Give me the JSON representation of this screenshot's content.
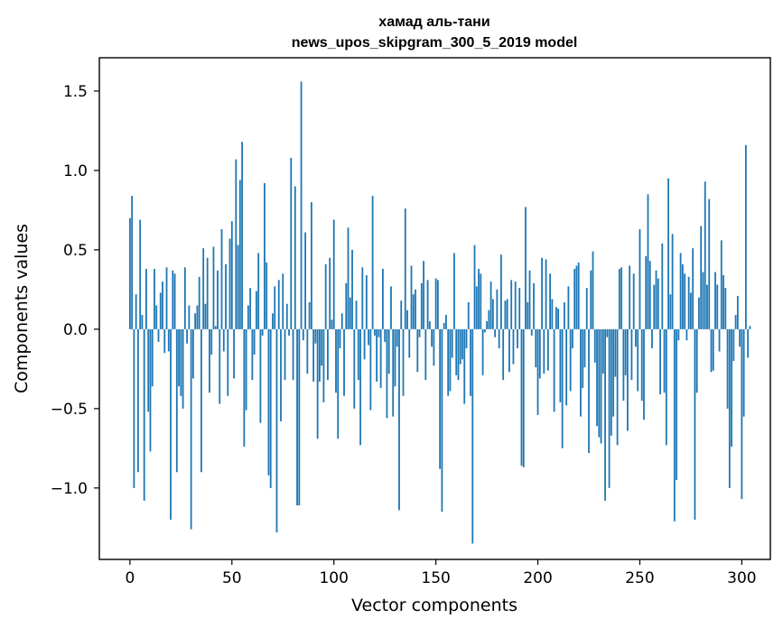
{
  "chart_data": {
    "type": "bar",
    "title_line1": "хамад аль-тани",
    "title_line2": "news_upos_skipgram_300_5_2019 model",
    "xlabel": "Vector components",
    "ylabel": "Components values",
    "xlim": [
      -15,
      314
    ],
    "ylim": [
      -1.45,
      1.71
    ],
    "xticks": [
      0,
      50,
      100,
      150,
      200,
      250,
      300
    ],
    "xtick_labels": [
      "0",
      "50",
      "100",
      "150",
      "200",
      "250",
      "300"
    ],
    "yticks": [
      -1.0,
      -0.5,
      0.0,
      0.5,
      1.0,
      1.5
    ],
    "ytick_labels": [
      "−1.0",
      "−0.5",
      "0.0",
      "0.5",
      "1.0",
      "1.5"
    ],
    "bar_color": "#1f77b4",
    "grid": false,
    "values": [
      0.7,
      0.84,
      -1.0,
      0.22,
      -0.9,
      0.69,
      0.09,
      -1.08,
      0.38,
      -0.52,
      -0.77,
      -0.36,
      0.38,
      0.15,
      -0.08,
      0.23,
      0.3,
      -0.15,
      0.39,
      -0.14,
      -1.2,
      0.37,
      0.35,
      -0.9,
      -0.36,
      -0.42,
      -0.5,
      0.39,
      -0.09,
      0.15,
      -1.26,
      -0.31,
      0.1,
      0.15,
      0.33,
      -0.9,
      0.51,
      0.16,
      0.45,
      -0.4,
      -0.16,
      0.52,
      0.02,
      0.37,
      -0.47,
      0.63,
      -0.14,
      0.41,
      -0.42,
      0.57,
      0.68,
      -0.31,
      1.07,
      0.53,
      0.94,
      1.18,
      -0.74,
      -0.51,
      0.15,
      0.26,
      -0.32,
      -0.16,
      0.24,
      0.48,
      -0.59,
      -0.04,
      0.92,
      0.42,
      -0.92,
      -1.0,
      0.1,
      0.27,
      -1.28,
      0.31,
      -0.58,
      0.35,
      -0.32,
      0.16,
      -0.04,
      1.08,
      -0.32,
      0.9,
      -1.11,
      -1.11,
      1.56,
      -0.07,
      0.61,
      -0.28,
      0.17,
      0.8,
      -0.33,
      -0.09,
      -0.69,
      -0.33,
      -0.23,
      -0.46,
      0.41,
      -0.32,
      0.45,
      0.06,
      0.69,
      -0.4,
      -0.69,
      -0.12,
      0.1,
      -0.42,
      0.29,
      0.64,
      0.2,
      0.5,
      -0.5,
      0.18,
      -0.32,
      -0.73,
      0.39,
      -0.19,
      0.34,
      -0.1,
      -0.51,
      0.84,
      -0.04,
      -0.33,
      -0.05,
      -0.37,
      0.38,
      -0.08,
      -0.56,
      -0.28,
      0.27,
      -0.55,
      -0.36,
      -0.11,
      -1.14,
      0.18,
      -0.42,
      0.76,
      0.12,
      -0.18,
      0.4,
      0.22,
      0.25,
      -0.27,
      -0.05,
      0.29,
      0.43,
      -0.32,
      0.31,
      0.05,
      -0.11,
      -0.23,
      0.32,
      0.31,
      -0.88,
      -1.15,
      0.04,
      0.09,
      -0.42,
      -0.39,
      -0.18,
      0.48,
      -0.29,
      -0.32,
      -0.22,
      -0.19,
      -0.47,
      -0.12,
      0.17,
      -0.42,
      -1.35,
      0.53,
      0.27,
      0.38,
      0.35,
      -0.29,
      -0.02,
      0.05,
      0.12,
      0.3,
      0.19,
      -0.05,
      0.25,
      -0.12,
      0.47,
      -0.32,
      0.18,
      0.19,
      -0.27,
      0.31,
      -0.22,
      0.3,
      -0.12,
      0.26,
      -0.86,
      -0.87,
      0.77,
      0.17,
      0.37,
      -0.04,
      0.29,
      -0.24,
      -0.54,
      -0.31,
      0.45,
      -0.28,
      0.44,
      -0.26,
      0.35,
      0.19,
      -0.52,
      0.14,
      0.13,
      -0.46,
      -0.75,
      0.17,
      -0.48,
      0.27,
      -0.39,
      -0.12,
      0.38,
      0.4,
      0.42,
      -0.55,
      -0.37,
      -0.24,
      0.26,
      -0.78,
      0.37,
      0.49,
      -0.21,
      -0.61,
      -0.68,
      -0.72,
      -0.28,
      -1.08,
      -0.05,
      -1.0,
      -0.67,
      -0.55,
      -0.3,
      -0.73,
      0.38,
      0.39,
      -0.45,
      -0.29,
      -0.64,
      0.4,
      -0.32,
      0.35,
      -0.11,
      -0.39,
      0.63,
      -0.45,
      -0.57,
      0.46,
      0.85,
      0.43,
      -0.12,
      0.28,
      0.37,
      0.32,
      -0.41,
      0.54,
      -0.4,
      -0.73,
      0.95,
      0.22,
      0.6,
      -1.21,
      -0.95,
      -0.07,
      0.48,
      0.41,
      0.35,
      -0.07,
      0.33,
      0.23,
      0.51,
      -1.2,
      -0.4,
      0.2,
      0.65,
      0.36,
      0.93,
      0.28,
      0.82,
      -0.27,
      -0.26,
      0.36,
      0.28,
      -0.14,
      0.56,
      0.34,
      0.26,
      -0.5,
      -1.0,
      -0.74,
      -0.2,
      0.09,
      0.21,
      -0.11,
      -1.07,
      -0.55,
      1.16,
      -0.18,
      0.02
    ]
  }
}
